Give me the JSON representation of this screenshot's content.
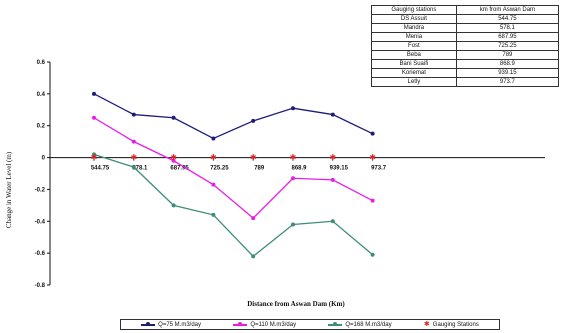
{
  "chart_data": {
    "type": "line",
    "title": "",
    "xlabel": "Distance from Aswan Dam (Km)",
    "ylabel": "Change in Water Level (m)",
    "ylim": [
      -0.8,
      0.6
    ],
    "yticks": [
      "0.6",
      "0.4",
      "0.2",
      "0",
      "-0.2",
      "-0.4",
      "-0.6",
      "-0.8"
    ],
    "ytick_values": [
      0.6,
      0.4,
      0.2,
      0,
      -0.2,
      -0.4,
      -0.6,
      -0.8
    ],
    "categories": [
      "544.75",
      "578.1",
      "687.95",
      "725.25",
      "789",
      "868.9",
      "939.15",
      "973.7"
    ],
    "grid": false,
    "legend_position": "bottom",
    "series": [
      {
        "name": "Q=75 M.m3/day",
        "color": "#1c1c7a",
        "marker": "dot",
        "values": [
          0.4,
          0.27,
          0.25,
          0.12,
          0.23,
          0.31,
          0.27,
          0.15
        ]
      },
      {
        "name": "Q=110 M.m3/day",
        "color": "#e81ee8",
        "marker": "dot",
        "values": [
          0.25,
          0.1,
          -0.02,
          -0.17,
          -0.38,
          -0.13,
          -0.14,
          -0.27
        ]
      },
      {
        "name": "Q=168 M.m3/day",
        "color": "#3e8c7a",
        "marker": "dot",
        "values": [
          0.02,
          -0.06,
          -0.3,
          -0.36,
          -0.62,
          -0.42,
          -0.4,
          -0.61
        ]
      },
      {
        "name": "Gauging Stations",
        "color": "#e02020",
        "marker": "star",
        "values": [
          0,
          0,
          0,
          0,
          0,
          0,
          0,
          0
        ]
      }
    ]
  },
  "table": {
    "headers": [
      "Gauging stations",
      "km from Aswan Dam"
    ],
    "rows": [
      [
        "DS Assuit",
        "544.75"
      ],
      [
        "Mandra",
        "578.1"
      ],
      [
        "Menia",
        "687.95"
      ],
      [
        "Fost",
        "725.25"
      ],
      [
        "Beba",
        "789"
      ],
      [
        "Bani Suaifi",
        "868.9"
      ],
      [
        "Koriemat",
        "939.15"
      ],
      [
        "Letly",
        "973.7"
      ]
    ]
  }
}
